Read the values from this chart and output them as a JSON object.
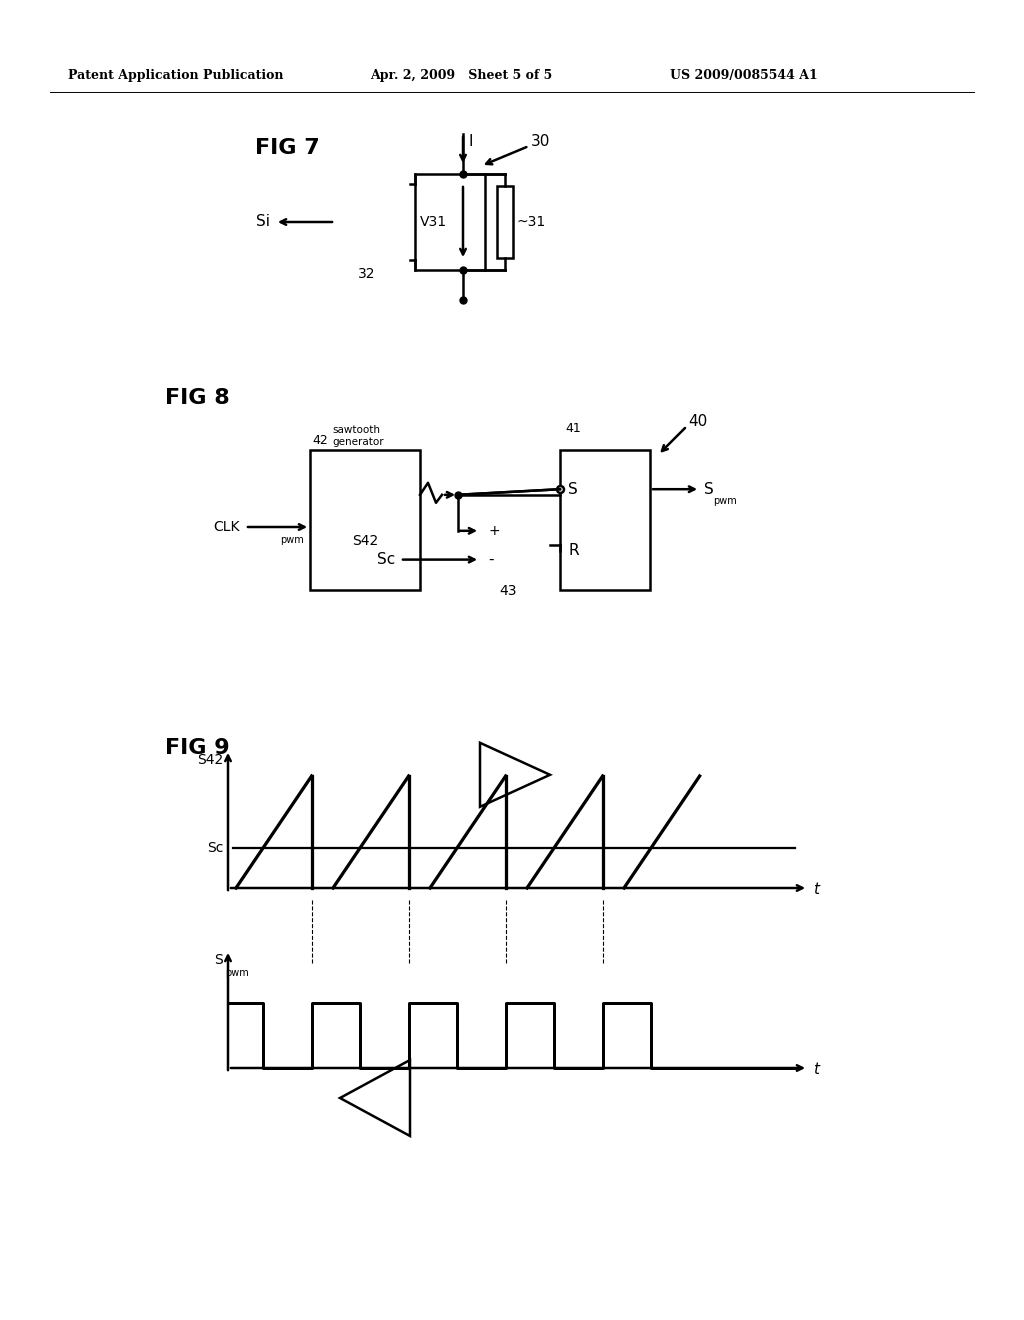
{
  "bg_color": "#ffffff",
  "header_left": "Patent Application Publication",
  "header_mid": "Apr. 2, 2009   Sheet 5 of 5",
  "header_right": "US 2009/0085544 A1",
  "fig7_label": "FIG 7",
  "fig8_label": "FIG 8",
  "fig9_label": "FIG 9",
  "lw": 1.8
}
